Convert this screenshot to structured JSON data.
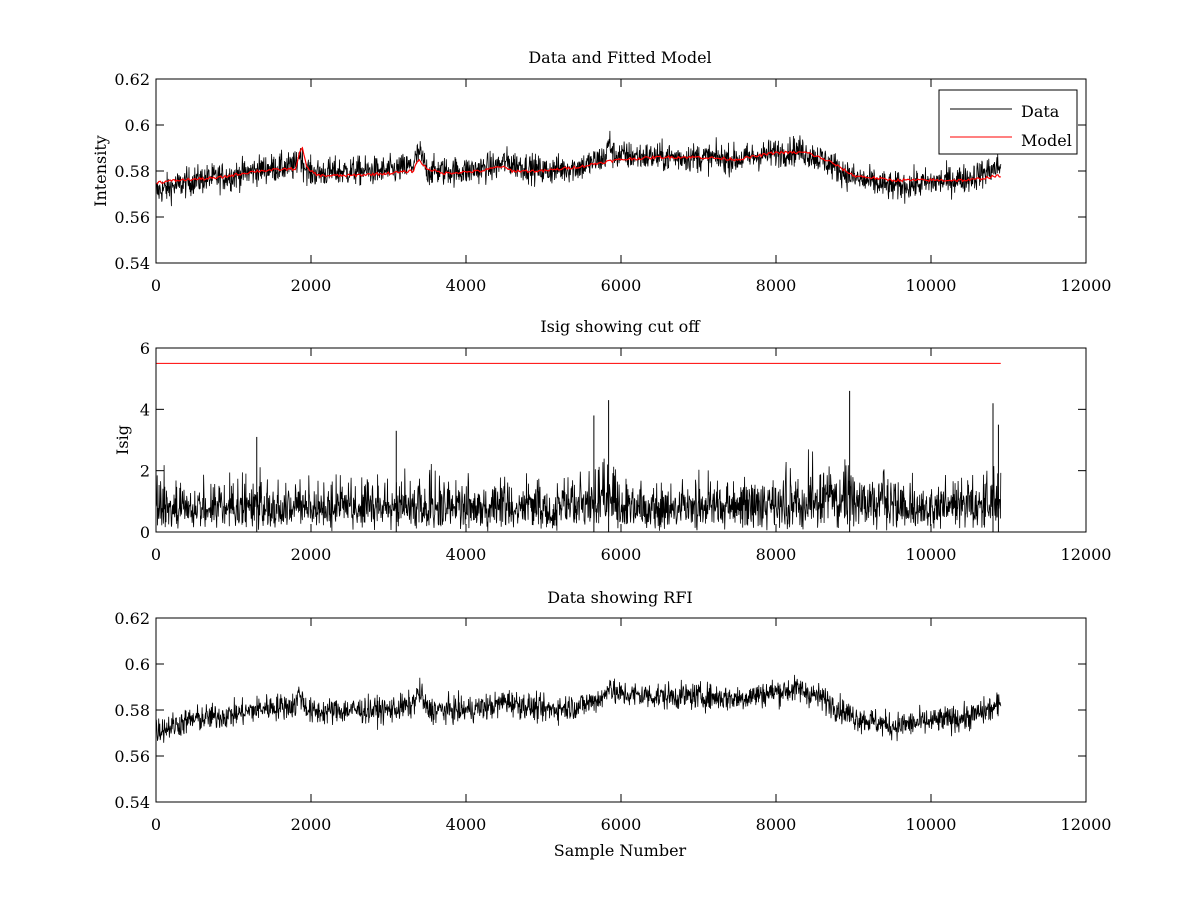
{
  "chart_data": [
    {
      "type": "line",
      "title": "Data and Fitted Model",
      "xlabel": "",
      "ylabel": "Intensity",
      "xlim": [
        0,
        12000
      ],
      "ylim": [
        0.54,
        0.62
      ],
      "xticks": [
        "0",
        "2000",
        "4000",
        "6000",
        "8000",
        "10000",
        "12000"
      ],
      "yticks": [
        "0.54",
        "0.56",
        "0.58",
        "0.6",
        "0.62"
      ],
      "legend": {
        "placement": "top-right",
        "entries": [
          "Data",
          "Model"
        ]
      },
      "colors": {
        "Data": "#000000",
        "Model": "#ff0000"
      },
      "series": [
        {
          "name": "Data",
          "noise_amplitude": 0.006,
          "x": [
            0,
            500,
            1000,
            1400,
            1800,
            1850,
            1900,
            2000,
            2500,
            3000,
            3300,
            3400,
            3500,
            4000,
            4400,
            4500,
            5000,
            5500,
            5800,
            5850,
            5900,
            6500,
            7000,
            7500,
            8000,
            8300,
            8600,
            9000,
            9500,
            10000,
            10500,
            10900
          ],
          "values": [
            0.571,
            0.576,
            0.578,
            0.581,
            0.582,
            0.588,
            0.583,
            0.579,
            0.58,
            0.58,
            0.582,
            0.588,
            0.58,
            0.58,
            0.582,
            0.584,
            0.58,
            0.582,
            0.586,
            0.593,
            0.587,
            0.586,
            0.586,
            0.585,
            0.588,
            0.589,
            0.585,
            0.577,
            0.573,
            0.575,
            0.577,
            0.582
          ]
        },
        {
          "name": "Model",
          "x": [
            0,
            300,
            800,
            1300,
            1800,
            1880,
            1950,
            2100,
            2500,
            3000,
            3320,
            3380,
            3500,
            3700,
            4200,
            4450,
            4600,
            5000,
            5500,
            5800,
            6000,
            6500,
            7000,
            7500,
            8000,
            8400,
            8700,
            9000,
            9500,
            10000,
            10500,
            10900
          ],
          "values": [
            0.575,
            0.576,
            0.577,
            0.58,
            0.581,
            0.591,
            0.581,
            0.578,
            0.578,
            0.579,
            0.58,
            0.585,
            0.581,
            0.579,
            0.58,
            0.582,
            0.58,
            0.58,
            0.582,
            0.584,
            0.585,
            0.586,
            0.586,
            0.585,
            0.588,
            0.588,
            0.584,
            0.578,
            0.576,
            0.576,
            0.576,
            0.578
          ]
        }
      ]
    },
    {
      "type": "line",
      "title": "Isig showing cut off",
      "xlabel": "",
      "ylabel": "Isig",
      "xlim": [
        0,
        12000
      ],
      "ylim": [
        0,
        6
      ],
      "xticks": [
        "0",
        "2000",
        "4000",
        "6000",
        "8000",
        "10000",
        "12000"
      ],
      "yticks": [
        "0",
        "2",
        "4",
        "6"
      ],
      "colors": {
        "Isig": "#000000",
        "cutoff": "#ff0000"
      },
      "cutoff": 5.5,
      "cutoff_x": [
        0,
        10900
      ],
      "series": [
        {
          "name": "",
          "x": [
            0,
            1000,
            2000,
            3000,
            4000,
            5000,
            5500,
            5800,
            5850,
            6000,
            7000,
            8000,
            8500,
            8950,
            9500,
            10000,
            10500,
            10900
          ],
          "envelope": [
            2.2,
            2.0,
            2.0,
            2.2,
            2.0,
            2.1,
            2.4,
            2.8,
            3.2,
            2.0,
            2.0,
            2.1,
            2.5,
            3.0,
            2.2,
            2.0,
            2.2,
            2.6
          ],
          "peaks_x": [
            0,
            1300,
            3100,
            5650,
            5840,
            8950,
            10800,
            10870
          ],
          "peaks": [
            4.4,
            3.1,
            3.3,
            3.8,
            4.3,
            4.6,
            4.2,
            3.5
          ]
        }
      ]
    },
    {
      "type": "line",
      "title": "Data showing RFI",
      "xlabel": "Sample Number",
      "ylabel": "",
      "xlim": [
        0,
        12000
      ],
      "ylim": [
        0.54,
        0.62
      ],
      "xticks": [
        "0",
        "2000",
        "4000",
        "6000",
        "8000",
        "10000",
        "12000"
      ],
      "yticks": [
        "0.54",
        "0.56",
        "0.58",
        "0.6",
        "0.62"
      ],
      "colors": {
        "Data": "#000000"
      },
      "series": [
        {
          "name": "",
          "noise_amplitude": 0.0055,
          "x": [
            0,
            500,
            1000,
            1400,
            1800,
            1850,
            1900,
            2000,
            2500,
            3000,
            3300,
            3400,
            3500,
            4000,
            4400,
            4500,
            5000,
            5500,
            5800,
            5850,
            5900,
            6500,
            7000,
            7500,
            8000,
            8300,
            8600,
            9000,
            9500,
            10000,
            10500,
            10900
          ],
          "values": [
            0.571,
            0.576,
            0.578,
            0.581,
            0.582,
            0.588,
            0.583,
            0.579,
            0.58,
            0.58,
            0.582,
            0.588,
            0.58,
            0.58,
            0.582,
            0.584,
            0.58,
            0.582,
            0.586,
            0.593,
            0.587,
            0.586,
            0.586,
            0.585,
            0.588,
            0.589,
            0.585,
            0.577,
            0.573,
            0.575,
            0.577,
            0.582
          ]
        }
      ]
    }
  ]
}
